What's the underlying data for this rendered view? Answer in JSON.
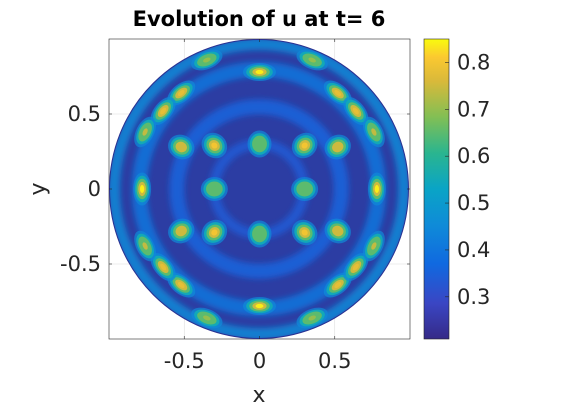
{
  "chart_data": {
    "type": "heatmap",
    "title": "Evolution of u at t= 6",
    "xlabel": "x",
    "ylabel": "y",
    "xlim": [
      -1,
      1
    ],
    "ylim": [
      -1,
      1
    ],
    "xticks": [
      -0.5,
      0,
      0.5
    ],
    "xtick_labels": [
      "-0.5",
      "0",
      "0.5"
    ],
    "yticks": [
      0.5,
      0,
      -0.5
    ],
    "ytick_labels": [
      "0.5",
      "0",
      "-0.5"
    ],
    "grid": true,
    "domain_shape": "unit disk",
    "colormap": "parula",
    "colorbar": {
      "range": [
        0.21,
        0.85
      ],
      "ticks": [
        0.3,
        0.4,
        0.5,
        0.6,
        0.7,
        0.8
      ],
      "tick_labels": [
        "0.3",
        "0.4",
        "0.5",
        "0.6",
        "0.7",
        "0.8"
      ]
    },
    "peaks": [
      {
        "x": 0,
        "y": 0.78,
        "value": 0.84
      },
      {
        "x": 0,
        "y": -0.78,
        "value": 0.84
      },
      {
        "x": 0.78,
        "y": 0,
        "value": 0.84
      },
      {
        "x": -0.78,
        "y": 0,
        "value": 0.84
      },
      {
        "x": 0.3,
        "y": 0.29,
        "value": 0.8
      },
      {
        "x": -0.3,
        "y": 0.29,
        "value": 0.8
      },
      {
        "x": 0.3,
        "y": -0.29,
        "value": 0.8
      },
      {
        "x": -0.3,
        "y": -0.29,
        "value": 0.8
      },
      {
        "x": 0.52,
        "y": 0.64,
        "value": 0.78
      },
      {
        "x": -0.52,
        "y": 0.64,
        "value": 0.78
      },
      {
        "x": 0.52,
        "y": -0.64,
        "value": 0.78
      },
      {
        "x": -0.52,
        "y": -0.64,
        "value": 0.78
      },
      {
        "x": 0.64,
        "y": 0.52,
        "value": 0.78
      },
      {
        "x": -0.64,
        "y": 0.52,
        "value": 0.78
      },
      {
        "x": 0.64,
        "y": -0.52,
        "value": 0.78
      },
      {
        "x": -0.64,
        "y": -0.52,
        "value": 0.78
      },
      {
        "x": 0.52,
        "y": 0.28,
        "value": 0.75
      },
      {
        "x": -0.52,
        "y": 0.28,
        "value": 0.75
      },
      {
        "x": 0.52,
        "y": -0.28,
        "value": 0.75
      },
      {
        "x": -0.52,
        "y": -0.28,
        "value": 0.75
      },
      {
        "x": 0.76,
        "y": 0.38,
        "value": 0.74
      },
      {
        "x": -0.76,
        "y": 0.38,
        "value": 0.74
      },
      {
        "x": 0.76,
        "y": -0.38,
        "value": 0.74
      },
      {
        "x": -0.76,
        "y": -0.38,
        "value": 0.74
      },
      {
        "x": 0.35,
        "y": 0.86,
        "value": 0.7
      },
      {
        "x": -0.35,
        "y": 0.86,
        "value": 0.7
      },
      {
        "x": 0.35,
        "y": -0.86,
        "value": 0.7
      },
      {
        "x": -0.35,
        "y": -0.86,
        "value": 0.7
      },
      {
        "x": 0,
        "y": 0.3,
        "value": 0.65
      },
      {
        "x": 0,
        "y": -0.3,
        "value": 0.65
      },
      {
        "x": 0.3,
        "y": 0,
        "value": 0.65
      },
      {
        "x": -0.3,
        "y": 0,
        "value": 0.65
      }
    ]
  }
}
